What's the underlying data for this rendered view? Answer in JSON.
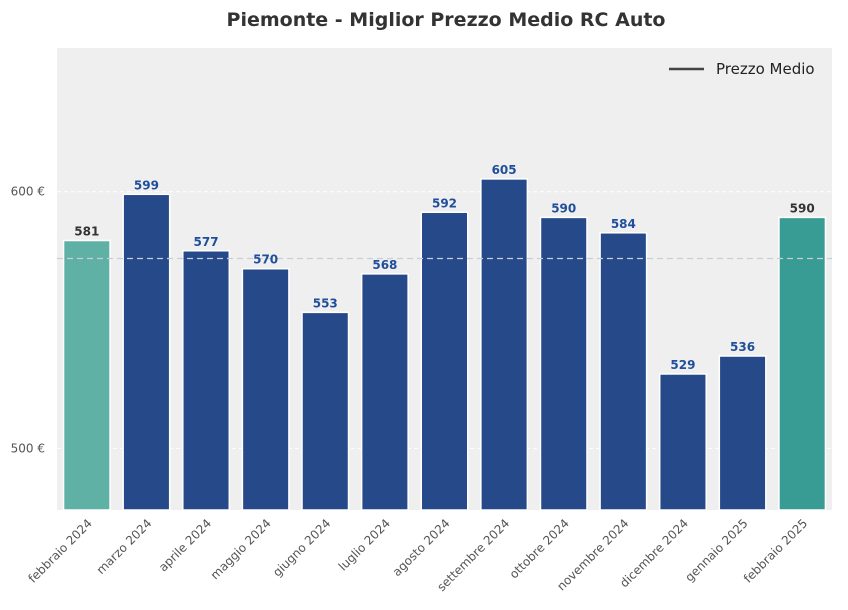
{
  "chart_data": {
    "type": "bar",
    "title": "Piemonte - Miglior Prezzo Medio RC Auto",
    "xlabel": "",
    "ylabel": "",
    "ylim": [
      476,
      656
    ],
    "y_ticks": [
      {
        "value": 500,
        "label": "500 €"
      },
      {
        "value": 600,
        "label": "600 €"
      }
    ],
    "categories": [
      "febbraio 2024",
      "marzo 2024",
      "aprile 2024",
      "maggio 2024",
      "giugno 2024",
      "luglio 2024",
      "agosto 2024",
      "settembre 2024",
      "ottobre 2024",
      "novembre 2024",
      "dicembre 2024",
      "gennaio 2025",
      "febbraio 2025"
    ],
    "values": [
      581,
      599,
      577,
      570,
      553,
      568,
      592,
      605,
      590,
      584,
      529,
      536,
      590
    ],
    "data_labels": [
      "581",
      "599",
      "577",
      "570",
      "553",
      "568",
      "592",
      "605",
      "590",
      "584",
      "529",
      "536",
      "590"
    ],
    "bar_colors": [
      "#5fb1a6",
      "#26498a",
      "#26498a",
      "#26498a",
      "#26498a",
      "#26498a",
      "#26498a",
      "#26498a",
      "#26498a",
      "#26498a",
      "#26498a",
      "#26498a",
      "#389c94"
    ],
    "label_colors": [
      "#333333",
      "#1f4e9a",
      "#1f4e9a",
      "#1f4e9a",
      "#1f4e9a",
      "#1f4e9a",
      "#1f4e9a",
      "#1f4e9a",
      "#1f4e9a",
      "#1f4e9a",
      "#1f4e9a",
      "#1f4e9a",
      "#333333"
    ],
    "mean_line": {
      "value": 574,
      "label": "Prezzo Medio"
    },
    "legend_position": "top-right",
    "grid": true,
    "background_color": "#efeff0"
  }
}
